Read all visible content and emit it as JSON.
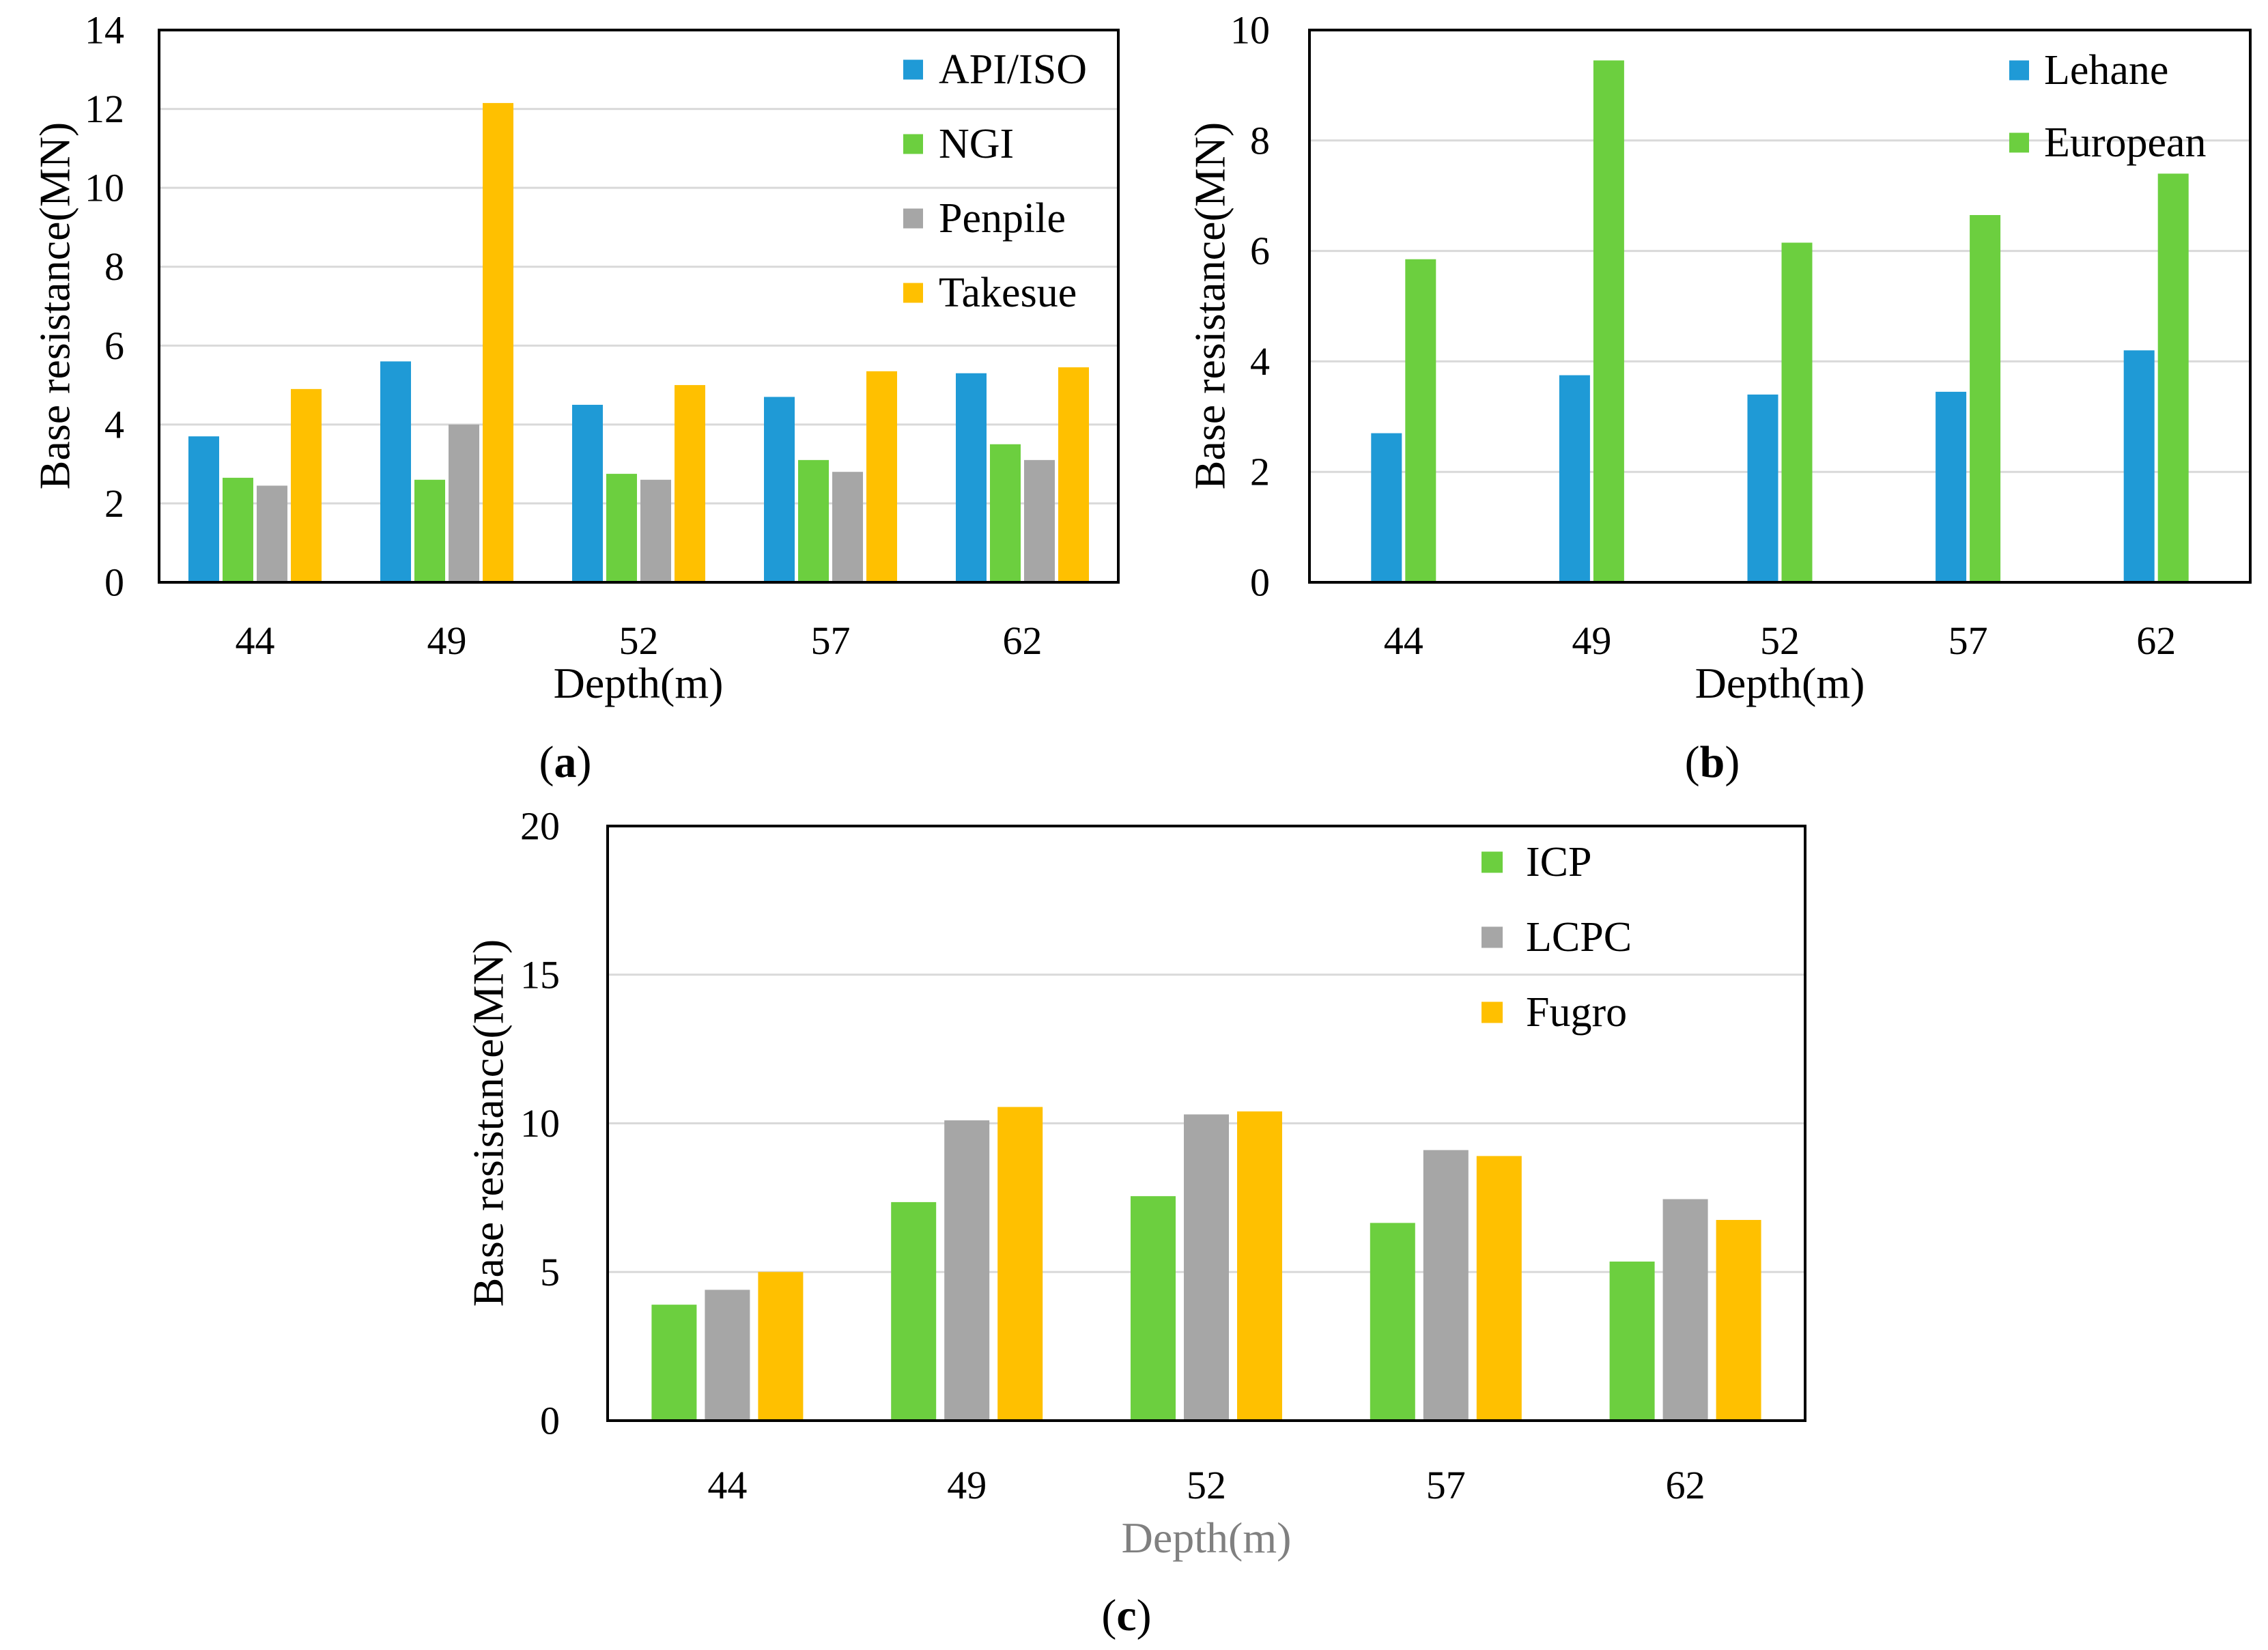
{
  "chart_data": [
    {
      "id": "a",
      "type": "bar",
      "panel_label": "a",
      "xlabel": "Depth(m)",
      "ylabel": "Base resistance(MN)",
      "categories": [
        "44",
        "49",
        "52",
        "57",
        "62"
      ],
      "ylim": [
        0,
        14
      ],
      "yticks": [
        "0",
        "2",
        "4",
        "6",
        "8",
        "10",
        "12",
        "14"
      ],
      "grid": true,
      "legend_position": "top-right",
      "series": [
        {
          "name": "API/ISO",
          "color": "#1f9ad6",
          "values": [
            3.7,
            5.6,
            4.5,
            4.7,
            5.3
          ]
        },
        {
          "name": "NGI",
          "color": "#6ccf3f",
          "values": [
            2.65,
            2.6,
            2.75,
            3.1,
            3.5
          ]
        },
        {
          "name": "Penpile",
          "color": "#a6a6a6",
          "values": [
            2.45,
            4.0,
            2.6,
            2.8,
            3.1
          ]
        },
        {
          "name": "Takesue",
          "color": "#ffc000",
          "values": [
            4.9,
            12.15,
            5.0,
            5.35,
            5.45
          ]
        }
      ]
    },
    {
      "id": "b",
      "type": "bar",
      "panel_label": "b",
      "xlabel": "Depth(m)",
      "ylabel": "Base resistance(MN)",
      "categories": [
        "44",
        "49",
        "52",
        "57",
        "62"
      ],
      "ylim": [
        0,
        10
      ],
      "yticks": [
        "0",
        "2",
        "4",
        "6",
        "8",
        "10"
      ],
      "grid": true,
      "legend_position": "top-right",
      "series": [
        {
          "name": "Lehane",
          "color": "#1f9ad6",
          "values": [
            2.7,
            3.75,
            3.4,
            3.45,
            4.2
          ]
        },
        {
          "name": "European",
          "color": "#6ccf3f",
          "values": [
            5.85,
            9.45,
            6.15,
            6.65,
            7.4
          ]
        }
      ]
    },
    {
      "id": "c",
      "type": "bar",
      "panel_label": "c",
      "xlabel": "Depth(m)",
      "ylabel": "Base resistance(MN)",
      "categories": [
        "44",
        "49",
        "52",
        "57",
        "62"
      ],
      "ylim": [
        0,
        20
      ],
      "yticks": [
        "0",
        "5",
        "10",
        "15",
        "20"
      ],
      "grid": true,
      "legend_position": "top-right",
      "series": [
        {
          "name": "ICP",
          "color": "#6ccf3f",
          "values": [
            3.9,
            7.35,
            7.55,
            6.65,
            5.35
          ]
        },
        {
          "name": "LCPC",
          "color": "#a6a6a6",
          "values": [
            4.4,
            10.1,
            10.3,
            9.1,
            7.45
          ]
        },
        {
          "name": "Fugro",
          "color": "#ffc000",
          "values": [
            5.0,
            10.55,
            10.4,
            8.9,
            6.75
          ]
        }
      ]
    }
  ]
}
